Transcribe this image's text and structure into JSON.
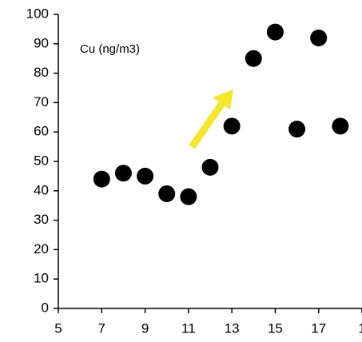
{
  "chart_data": {
    "type": "scatter",
    "annotation": "Cu (ng/m3)",
    "x": [
      7,
      8,
      9,
      10,
      11,
      12,
      13,
      14,
      15,
      16,
      17,
      18
    ],
    "values": [
      44,
      46,
      45,
      39,
      38,
      48,
      62,
      85,
      94,
      61,
      92,
      62
    ],
    "color": "#000000",
    "xlim": [
      5,
      19
    ],
    "xticks": [
      5,
      7,
      9,
      11,
      13,
      15,
      17,
      {
        "value": 19,
        "label": "1"
      }
    ],
    "ylim": [
      0,
      100
    ],
    "yticks": [
      0,
      10,
      20,
      30,
      40,
      50,
      60,
      70,
      80,
      90,
      100
    ],
    "grid": false
  }
}
